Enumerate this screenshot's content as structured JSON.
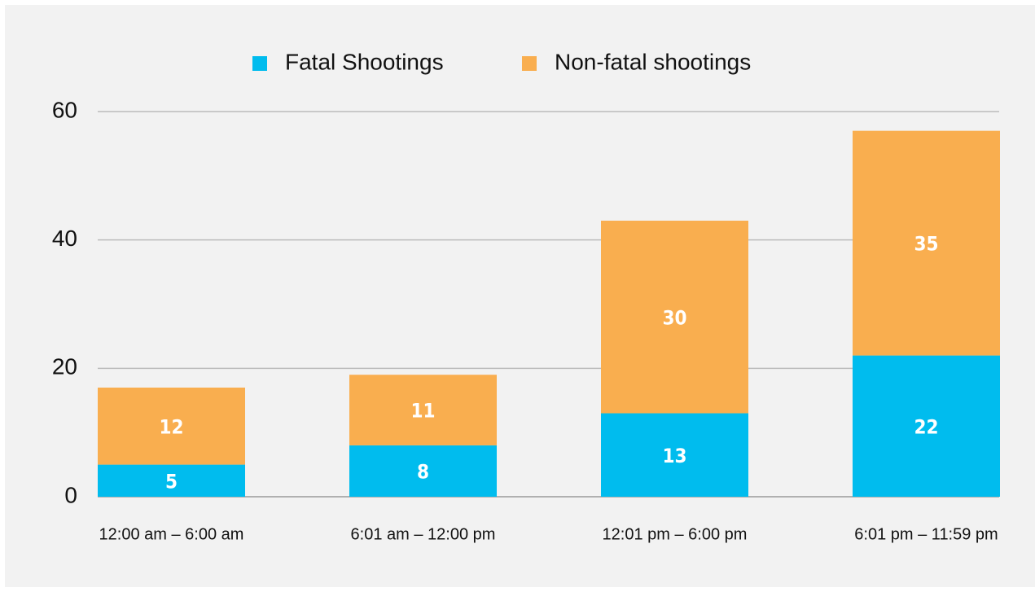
{
  "chart_data": {
    "type": "stacked_bar",
    "categories": [
      "12:00 am – 6:00 am",
      "6:01 am – 12:00 pm",
      "12:01 pm – 6:00 pm",
      "6:01 pm – 11:59 pm"
    ],
    "series": [
      {
        "name": "Fatal Shootings",
        "color": "#00bcee",
        "values": [
          5,
          8,
          13,
          22
        ]
      },
      {
        "name": "Non-fatal shootings",
        "color": "#f9ae4f",
        "values": [
          12,
          11,
          30,
          35
        ]
      }
    ],
    "ylim": [
      0,
      60
    ],
    "yticks": [
      0,
      20,
      40,
      60
    ],
    "grid": true,
    "legend": "top"
  }
}
